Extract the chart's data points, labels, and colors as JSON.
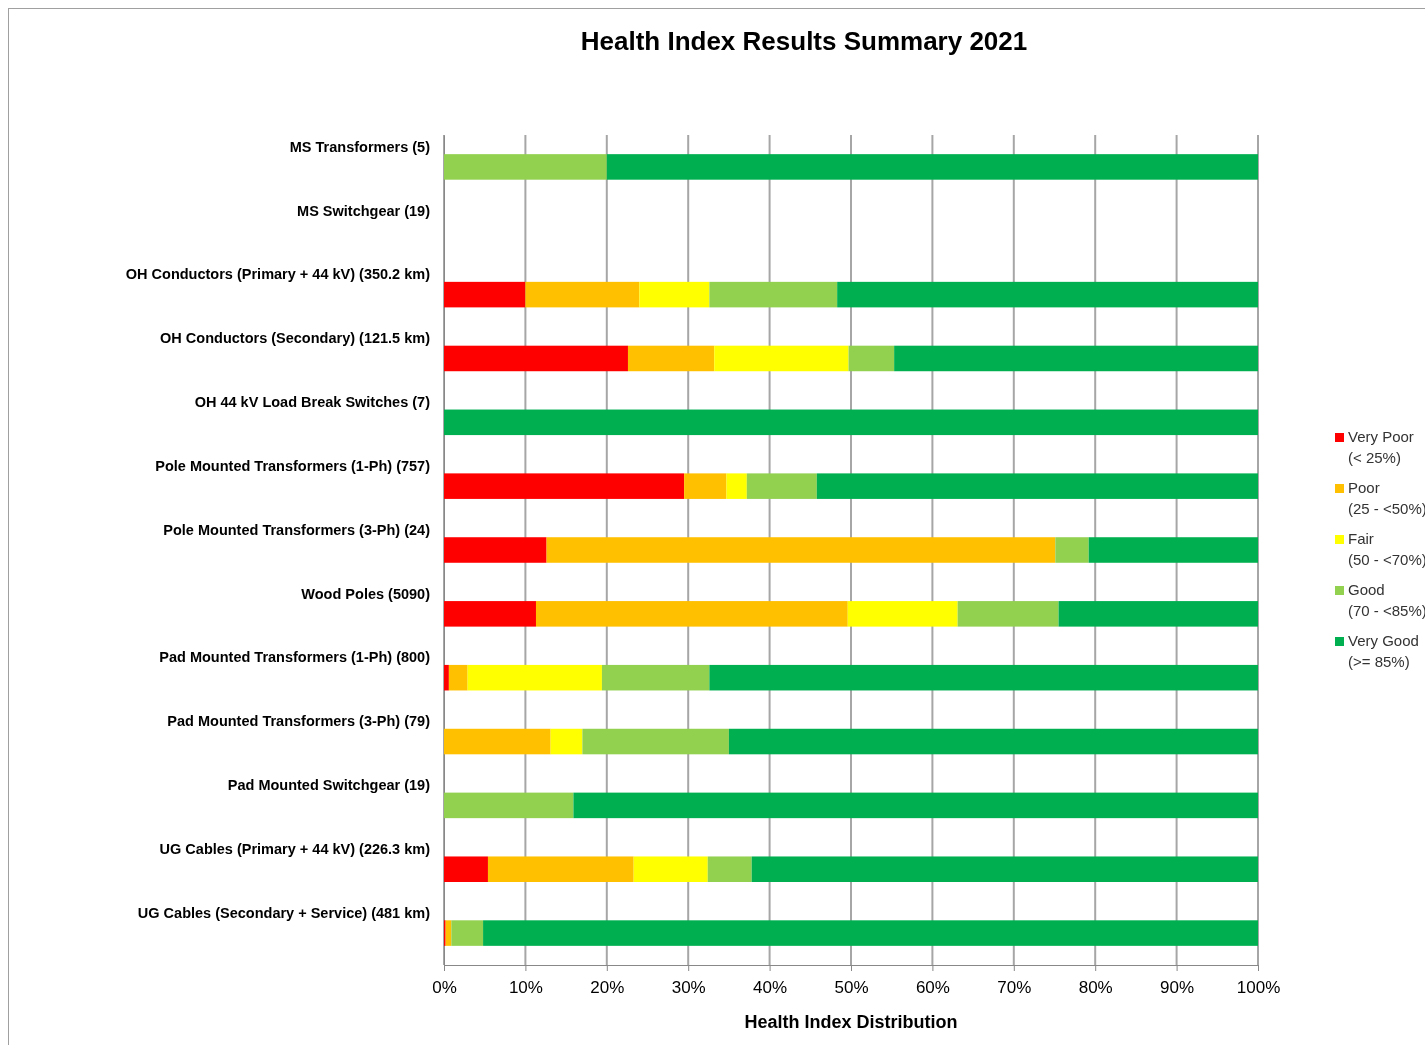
{
  "chart_data": {
    "type": "bar",
    "orientation": "horizontal",
    "stacked": true,
    "title": "Health Index Results Summary 2021",
    "xlabel": "Health Index Distribution",
    "categories": [
      "MS Transformers (5)",
      "MS Switchgear (19)",
      "OH Conductors (Primary + 44 kV) (350.2 km)",
      "OH Conductors (Secondary) (121.5 km)",
      "OH 44 kV Load Break Switches (7)",
      "Pole Mounted Transformers (1-Ph) (757)",
      "Pole Mounted Transformers (3-Ph) (24)",
      "Wood Poles (5090)",
      "Pad Mounted Transformers (1-Ph) (800)",
      "Pad Mounted Transformers (3-Ph) (79)",
      "Pad Mounted Switchgear (19)",
      "UG Cables (Primary + 44 kV) (226.3 km)",
      "UG Cables (Secondary + Service) (481 km)"
    ],
    "series": [
      {
        "name": "Very Poor (< 25%)",
        "color": "#ff0000",
        "values": [
          null,
          null,
          10.0,
          22.6,
          null,
          29.5,
          12.6,
          11.3,
          0.6,
          null,
          null,
          5.4,
          0.2
        ]
      },
      {
        "name": "Poor (25 - <50%)",
        "color": "#ffc000",
        "values": [
          null,
          null,
          14.0,
          10.6,
          null,
          5.2,
          62.5,
          38.3,
          2.3,
          13.1,
          null,
          17.9,
          0.7
        ]
      },
      {
        "name": "Fair (50 - <70%)",
        "color": "#ffff00",
        "values": [
          null,
          null,
          8.6,
          16.5,
          null,
          2.5,
          null,
          13.5,
          16.5,
          3.9,
          null,
          9.1,
          null
        ]
      },
      {
        "name": "Good (70 - <85%)",
        "color": "#92d050",
        "values": [
          20.0,
          null,
          15.7,
          5.6,
          null,
          8.6,
          4.1,
          12.4,
          13.2,
          18.0,
          15.9,
          5.4,
          3.9
        ]
      },
      {
        "name": "Very Good (>= 85%)",
        "color": "#00b050",
        "values": [
          80.0,
          null,
          51.7,
          44.7,
          100,
          54.2,
          20.8,
          24.5,
          67.4,
          65.0,
          84.1,
          62.2,
          95.2
        ]
      }
    ],
    "xlim": [
      0,
      100
    ],
    "xticks": [
      {
        "value": 0,
        "label": "0%"
      },
      {
        "value": 10,
        "label": "10%"
      },
      {
        "value": 20,
        "label": "20%"
      },
      {
        "value": 30,
        "label": "30%"
      },
      {
        "value": 40,
        "label": "40%"
      },
      {
        "value": 50,
        "label": "50%"
      },
      {
        "value": 60,
        "label": "60%"
      },
      {
        "value": 70,
        "label": "70%"
      },
      {
        "value": 80,
        "label": "80%"
      },
      {
        "value": 90,
        "label": "90%"
      },
      {
        "value": 100,
        "label": "100%"
      }
    ],
    "grid": "x",
    "legend": "right"
  }
}
